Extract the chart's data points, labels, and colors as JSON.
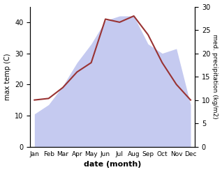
{
  "months": [
    "Jan",
    "Feb",
    "Mar",
    "Apr",
    "May",
    "Jun",
    "Jul",
    "Aug",
    "Sep",
    "Oct",
    "Nov",
    "Dec"
  ],
  "max_temp": [
    15,
    15.5,
    19,
    24,
    27,
    41,
    40,
    42,
    36,
    27,
    20,
    15
  ],
  "precipitation": [
    7,
    9,
    13,
    18,
    22,
    27,
    28,
    28,
    22,
    20,
    21,
    9
  ],
  "temp_color": "#993333",
  "precip_fill_color": "#c5caf0",
  "temp_ylim": [
    0,
    45
  ],
  "precip_ylim": [
    0,
    30
  ],
  "temp_yticks": [
    0,
    10,
    20,
    30,
    40
  ],
  "precip_yticks": [
    0,
    5,
    10,
    15,
    20,
    25,
    30
  ],
  "ylabel_left": "max temp (C)",
  "ylabel_right": "med. precipitation (kg/m2)",
  "xlabel": "date (month)",
  "bg_color": "#ffffff"
}
